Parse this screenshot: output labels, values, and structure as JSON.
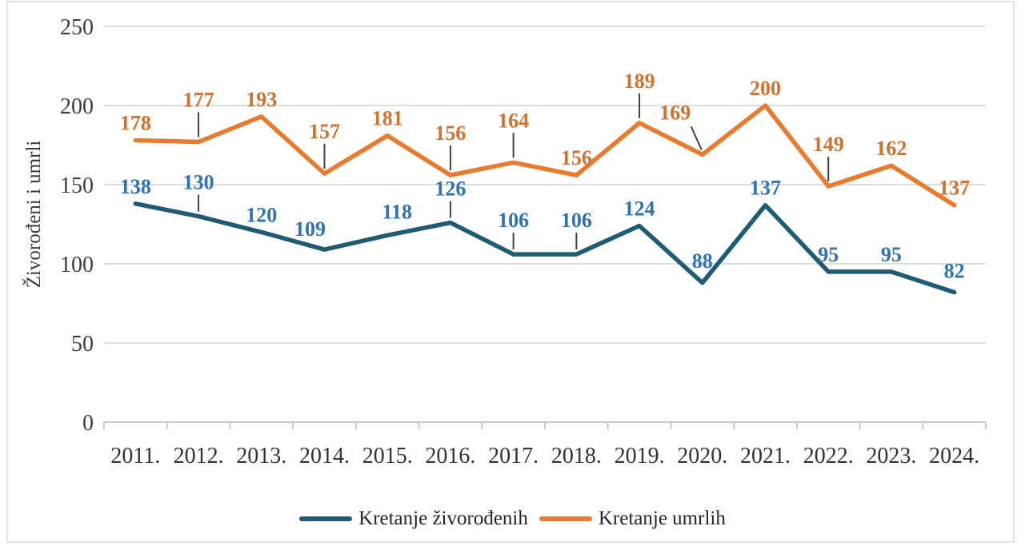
{
  "chart_data": {
    "type": "line",
    "title": "",
    "ylabel": "Živorođeni i umrli",
    "xlabel": "",
    "categories": [
      "2011.",
      "2012.",
      "2013.",
      "2014.",
      "2015.",
      "2016.",
      "2017.",
      "2018.",
      "2019.",
      "2020.",
      "2021.",
      "2022.",
      "2023.",
      "2024."
    ],
    "series": [
      {
        "name": "Kretanje živorođenih",
        "color": "#1F5B73",
        "label_color": "#2E74B5",
        "values": [
          138,
          130,
          120,
          109,
          118,
          126,
          106,
          106,
          124,
          88,
          137,
          95,
          95,
          82
        ],
        "callout_years": [
          "2012.",
          "2016.",
          "2017.",
          "2018."
        ]
      },
      {
        "name": "Kretanje umrlih",
        "color": "#E87B2E",
        "label_color": "#D2722E",
        "values": [
          178,
          177,
          193,
          157,
          181,
          156,
          164,
          156,
          189,
          169,
          200,
          149,
          162,
          137
        ],
        "callout_years": [
          "2012.",
          "2014.",
          "2016.",
          "2017.",
          "2019.",
          "2020.",
          "2022."
        ]
      }
    ],
    "ylim": [
      0,
      250
    ],
    "yticks": [
      0,
      50,
      100,
      150,
      200,
      250
    ],
    "grid": "horizontal-gridlines",
    "legend_position": "bottom",
    "data_labels": true
  },
  "colors": {
    "grid": "#DADADA",
    "axis": "#C4C4C4",
    "frame": "#D9D9D9",
    "leader": "#404040",
    "tick_text": "#3D3D3D",
    "legend_text": "#262626"
  }
}
